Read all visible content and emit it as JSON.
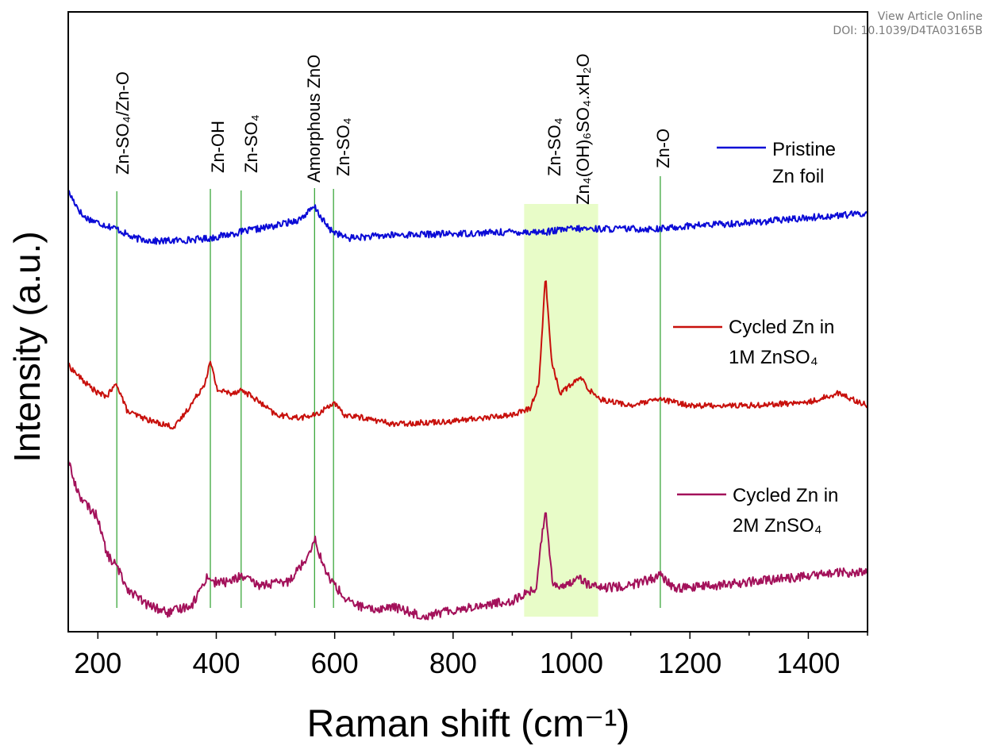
{
  "header": {
    "view_online": "View Article Online",
    "doi": "DOI: 10.1039/D4TA03165B"
  },
  "chart_data": {
    "type": "line",
    "xlabel": "Raman shift (cm⁻¹)",
    "ylabel": "Intensity (a.u.)",
    "xlim": [
      150,
      1500
    ],
    "ylim": [
      0,
      100
    ],
    "x_ticks": [
      200,
      400,
      600,
      800,
      1000,
      1200,
      1400
    ],
    "y_ticks_shown": false,
    "grid": false,
    "highlight_band": {
      "x": [
        920,
        1045
      ],
      "color": "#e8fcc8"
    },
    "reference_lines": [
      {
        "x": 232,
        "label": "Zn-SO₄/Zn-O"
      },
      {
        "x": 390,
        "label": "Zn-OH"
      },
      {
        "x": 442,
        "label": "Zn-SO₄"
      },
      {
        "x": 566,
        "label": "Amorphous ZnO"
      },
      {
        "x": 598,
        "label": "Zn-SO₄"
      },
      {
        "x": 956,
        "label": "Zn-SO₄"
      },
      {
        "x": 1000,
        "label": "Zn₄(OH)₆SO₄.xH₂O"
      },
      {
        "x": 1150,
        "label": "Zn-O"
      }
    ],
    "series": [
      {
        "name": "Pristine Zn foil",
        "legend_lines": [
          "Pristine",
          "Zn foil"
        ],
        "color": "#0b0bd6",
        "x": [
          150,
          175,
          200,
          232,
          260,
          300,
          350,
          390,
          442,
          500,
          540,
          566,
          590,
          620,
          700,
          800,
          900,
          956,
          1000,
          1050,
          1150,
          1200,
          1300,
          1400,
          1500
        ],
        "y": [
          71,
          67,
          66,
          65,
          63.5,
          63,
          63.2,
          63.5,
          64.5,
          65.5,
          66.5,
          68.5,
          65,
          63.5,
          64,
          64.2,
          64.5,
          64.5,
          65,
          65,
          65,
          65.5,
          66,
          66.8,
          67.5
        ],
        "noise": 0.55
      },
      {
        "name": "Cycled Zn in 1M ZnSO₄",
        "legend_lines": [
          "Cycled Zn in",
          "1M ZnSO₄"
        ],
        "color": "#c8100c",
        "x": [
          150,
          175,
          200,
          215,
          232,
          250,
          290,
          330,
          360,
          380,
          390,
          402,
          425,
          442,
          460,
          500,
          540,
          570,
          598,
          615,
          650,
          700,
          800,
          900,
          930,
          945,
          956,
          966,
          980,
          995,
          1015,
          1030,
          1050,
          1100,
          1150,
          1200,
          1300,
          1400,
          1450,
          1500
        ],
        "y": [
          43,
          40.5,
          38.5,
          38,
          40,
          35.5,
          34,
          33,
          37,
          40,
          43.5,
          39,
          38.5,
          39,
          38,
          35,
          34.5,
          35,
          37,
          35,
          34.5,
          33.5,
          34,
          35,
          36,
          40,
          57.5,
          44,
          38.5,
          39.5,
          41,
          39,
          37.5,
          36.5,
          37.5,
          36.5,
          36.5,
          37,
          38.5,
          36.5
        ],
        "noise": 0.45
      },
      {
        "name": "Cycled Zn in 2M ZnSO₄",
        "legend_lines": [
          "Cycled Zn in",
          "2M ZnSO₄"
        ],
        "color": "#a3115a",
        "x": [
          150,
          160,
          175,
          200,
          215,
          232,
          250,
          280,
          320,
          360,
          385,
          395,
          420,
          442,
          470,
          520,
          550,
          566,
          585,
          620,
          660,
          700,
          750,
          800,
          900,
          940,
          956,
          968,
          985,
          1010,
          1030,
          1050,
          1100,
          1150,
          1175,
          1250,
          1350,
          1450,
          1500
        ],
        "y": [
          28,
          24,
          21,
          18.5,
          12.5,
          10.5,
          7,
          4.5,
          3,
          4.5,
          9,
          8,
          8,
          9,
          7.5,
          8,
          11.5,
          15,
          9.5,
          5,
          3.5,
          4,
          2.5,
          3.5,
          5,
          7,
          20,
          8,
          7,
          9,
          7.5,
          7,
          7.5,
          9,
          7,
          7.5,
          8.5,
          9.5,
          9.5
        ],
        "noise": 0.75
      }
    ]
  }
}
